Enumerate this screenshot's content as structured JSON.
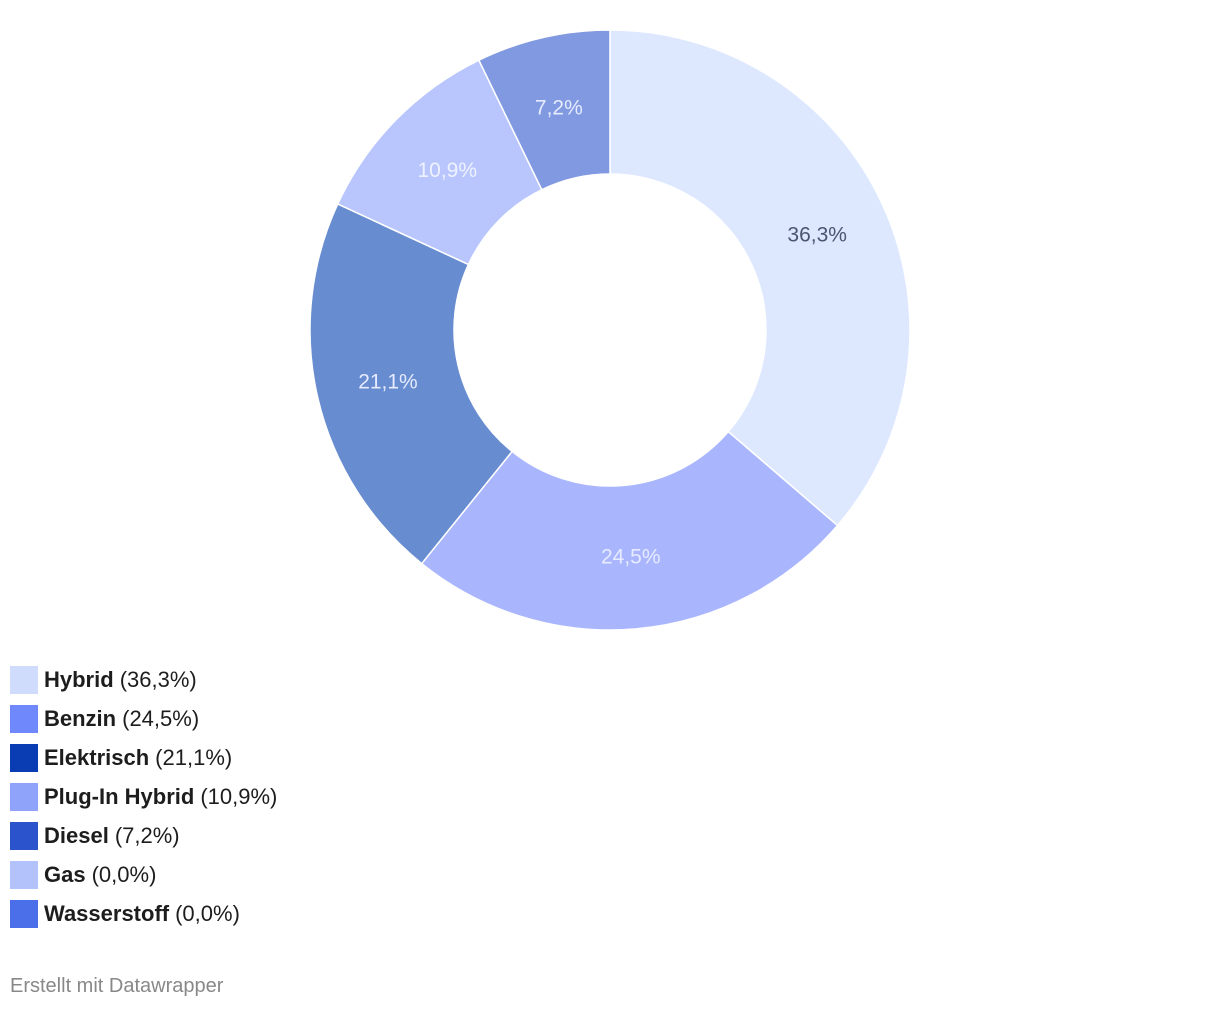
{
  "chart_data": {
    "type": "pie",
    "variant": "donut",
    "slices": [
      {
        "name": "Hybrid",
        "value": 36.3,
        "label": "36,3%",
        "legend_value": "(36,3%)",
        "color": "#dde8ff",
        "legend_color": "#cfdcfb",
        "label_color": "#4a5570"
      },
      {
        "name": "Benzin",
        "value": 24.5,
        "label": "24,5%",
        "legend_value": "(24,5%)",
        "color": "#a9b6fd",
        "legend_color": "#6f88fb",
        "label_color": "#e6ebff"
      },
      {
        "name": "Elektrisch",
        "value": 21.1,
        "label": "21,1%",
        "legend_value": "(21,1%)",
        "color": "#678cd0",
        "legend_color": "#0a3cb4",
        "label_color": "#e6ebff"
      },
      {
        "name": "Plug-In Hybrid",
        "value": 10.9,
        "label": "10,9%",
        "legend_value": "(10,9%)",
        "color": "#b9c6fd",
        "legend_color": "#8fa3fb",
        "label_color": "#eef2ff"
      },
      {
        "name": "Diesel",
        "value": 7.2,
        "label": "7,2%",
        "legend_value": "(7,2%)",
        "color": "#8099e0",
        "legend_color": "#2a53cc",
        "label_color": "#e6ebff"
      },
      {
        "name": "Gas",
        "value": 0.0,
        "label": "",
        "legend_value": "(0,0%)",
        "color": "#b4c2fb",
        "legend_color": "#b4c2fb",
        "label_color": "#e6ebff"
      },
      {
        "name": "Wasserstoff",
        "value": 0.0,
        "label": "",
        "legend_value": "(0,0%)",
        "color": "#4b6fe8",
        "legend_color": "#4b6fe8",
        "label_color": "#e6ebff"
      }
    ],
    "legend_position": "bottom-left"
  },
  "footer": {
    "credit": "Erstellt mit Datawrapper"
  }
}
